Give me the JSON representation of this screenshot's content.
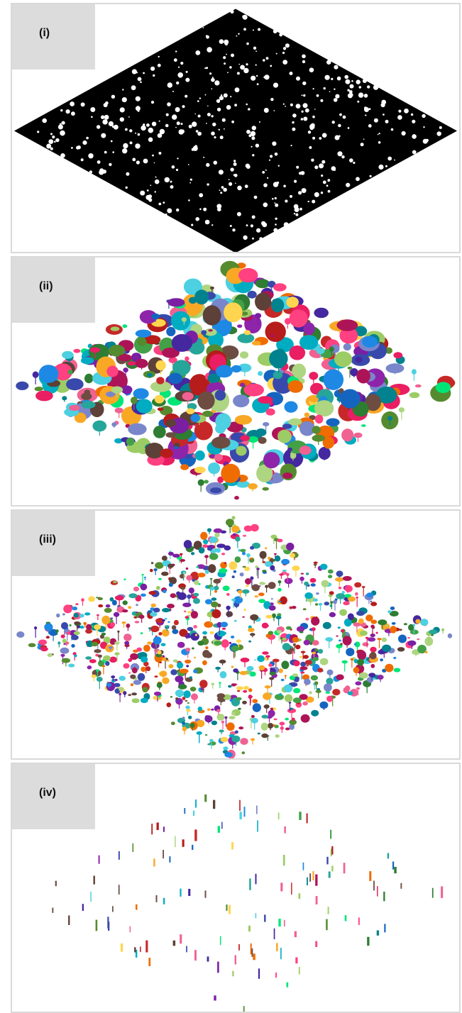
{
  "panels": [
    {
      "label": "(i)",
      "style": "black",
      "base_color": "#000000",
      "density": 0.92
    },
    {
      "label": "(ii)",
      "style": "large-clusters",
      "base_color": "#ffffff",
      "density": 0.75
    },
    {
      "label": "(iii)",
      "style": "small-clusters",
      "base_color": "#ffffff",
      "density": 0.7
    },
    {
      "label": "(iv)",
      "style": "sparse-stems",
      "base_color": "#ffffff",
      "density": 0.15
    }
  ],
  "palette": [
    "#2e7d32",
    "#7b1fa2",
    "#1565c0",
    "#c62828",
    "#f9a825",
    "#00838f",
    "#ad1457",
    "#558b2f",
    "#4527a0",
    "#ef6c00",
    "#6d4c41",
    "#00acc1",
    "#e91e63",
    "#43a047",
    "#3949ab",
    "#8e24aa",
    "#00e676",
    "#ff4081",
    "#1e88e5",
    "#ffd54f",
    "#5d4037",
    "#26a69a",
    "#9ccc65",
    "#b71c1c",
    "#f06292",
    "#7986cb",
    "#4dd0e1",
    "#aed581"
  ]
}
